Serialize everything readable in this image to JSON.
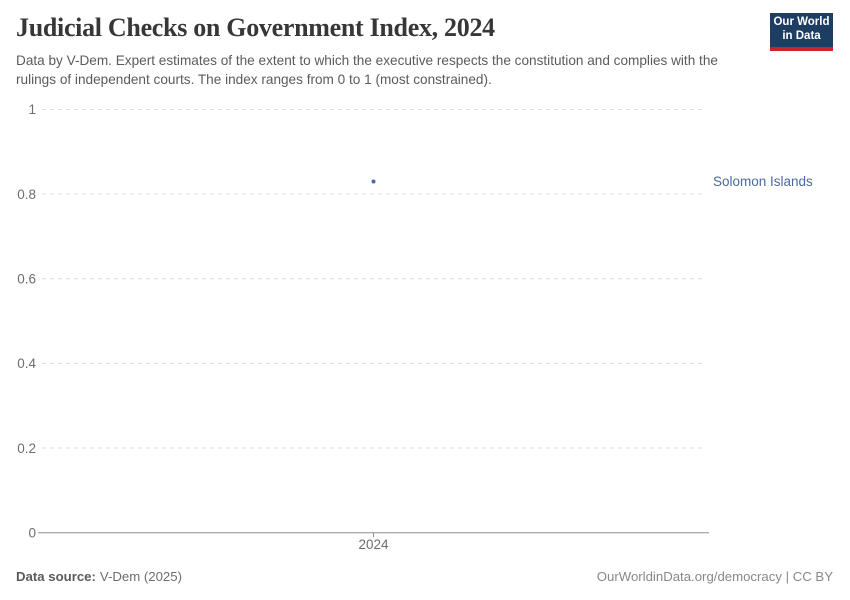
{
  "header": {
    "title": "Judicial Checks on Government Index, 2024",
    "subtitle": "Data by V-Dem. Expert estimates of the extent to which the executive respects the constitution and complies with the rulings of independent courts. The index ranges from 0 to 1 (most constrained)."
  },
  "logo": {
    "line1": "Our World",
    "line2": "in Data"
  },
  "chart_data": {
    "type": "scatter",
    "title": "Judicial Checks on Government Index, 2024",
    "x": [
      2024
    ],
    "series": [
      {
        "name": "Solomon Islands",
        "values": [
          0.83
        ],
        "color": "#4c6a9c"
      }
    ],
    "xlabel": "",
    "ylabel": "",
    "ylim": [
      0,
      1
    ],
    "yticks": [
      0,
      0.2,
      0.4,
      0.6,
      0.8,
      1
    ],
    "xticks": [
      2024
    ],
    "grid": "horizontal-dashed",
    "legend_position": "entity-label-right"
  },
  "footer": {
    "source_label": "Data source:",
    "source_value": "V-Dem (2025)",
    "credit": "OurWorldinData.org/democracy | CC BY"
  },
  "colors": {
    "accent": "#4c6a9c",
    "logo_bg": "#1d3d63",
    "logo_accent": "#cf2227",
    "grid": "#dcdcdc",
    "axis": "#8f8f8f",
    "tick_label": "#6e6e6e"
  }
}
